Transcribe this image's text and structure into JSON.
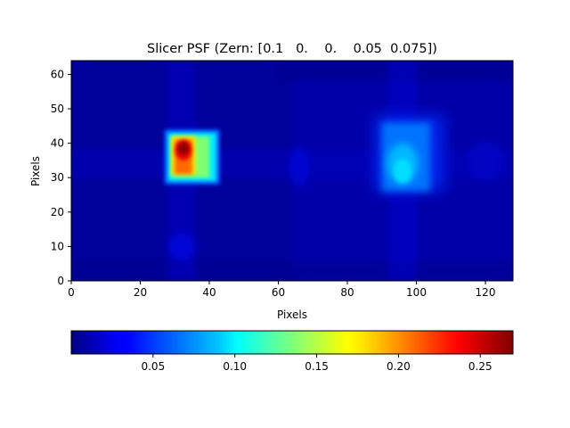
{
  "chart_data": {
    "type": "heatmap",
    "title": "Slicer PSF (Zern: [0.1   0.    0.    0.05  0.075])",
    "xlabel": "Pixels",
    "ylabel": "Pixels",
    "xlim": [
      0,
      128
    ],
    "ylim": [
      0,
      64
    ],
    "x_ticks": [
      "0",
      "20",
      "40",
      "60",
      "80",
      "100",
      "120"
    ],
    "y_ticks": [
      "0",
      "10",
      "20",
      "30",
      "40",
      "50",
      "60"
    ],
    "colormap": "jet",
    "colorbar": {
      "orientation": "horizontal",
      "range": [
        0.0,
        0.27
      ],
      "ticks": [
        "0.05",
        "0.10",
        "0.15",
        "0.20",
        "0.25"
      ]
    },
    "image_size": [
      128,
      64
    ],
    "features": [
      {
        "x": 32,
        "y": 37,
        "peak": 0.27,
        "shape": "bright square core"
      },
      {
        "x": 96,
        "y": 34,
        "peak": 0.08,
        "shape": "faint elongated blob"
      }
    ]
  }
}
